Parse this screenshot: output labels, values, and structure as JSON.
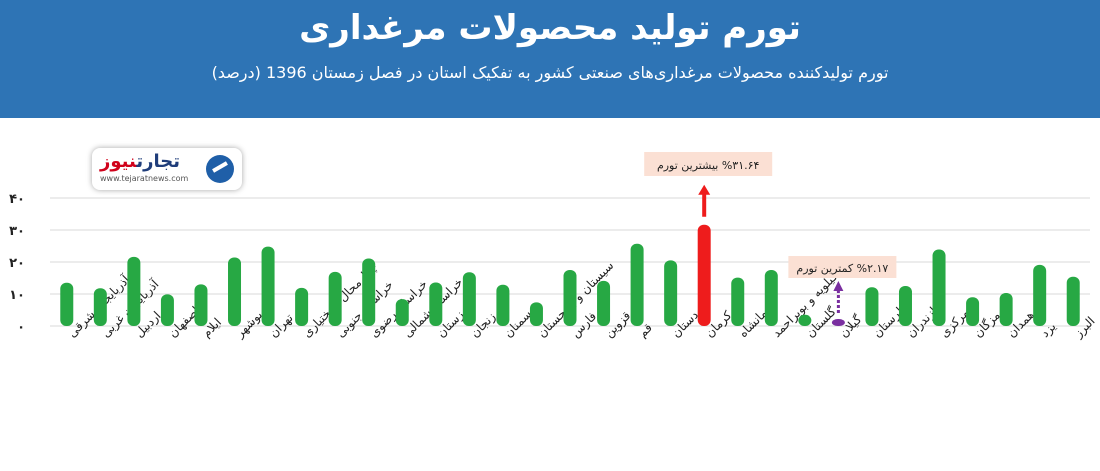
{
  "header": {
    "title": "تورم تولید محصولات مرغداری",
    "subtitle": "تورم تولیدکننده محصولات مرغداری‌های صنعتی کشور به تفکیک استان در فصل زمستان 1396 (درصد)"
  },
  "logo": {
    "name_part1": "نیوز",
    "name_part2": "تجارت",
    "url": "www.tejaratnews.com"
  },
  "colors": {
    "banner": "#2e74b5",
    "bar_default": "#27a844",
    "bar_max": "#ee1c1c",
    "bar_min": "#7a2fa0",
    "callout_bg": "#fbe0d4"
  },
  "chart_data": {
    "type": "bar",
    "ylim": [
      0,
      40
    ],
    "yticks": [
      "۰",
      "۱۰",
      "۲۰",
      "۳۰",
      "۴۰"
    ],
    "grid": true,
    "categories": [
      "آذربایجان شرقی",
      "آذربایجان غربی",
      "اردبیل",
      "اصفهان",
      "ایلام",
      "بوشهر",
      "تهران",
      "چهارمحال و بختیاری",
      "خراسان جنوبی",
      "خراسان رضوی",
      "خراسان شمالی",
      "خوزستان",
      "زنجان",
      "سمنان",
      "سیستان و بلوچستان",
      "فارس",
      "قزوین",
      "قم",
      "کردستان",
      "کرمان",
      "کرمانشاه",
      "کهگیلویه و بویراحمد",
      "گلستان",
      "گیلان",
      "لرستان",
      "مازندران",
      "مرکزی",
      "هرمزگان",
      "همدان",
      "یزد",
      "البرز"
    ],
    "values": [
      13.5,
      11.8,
      21.6,
      9.9,
      13.0,
      21.4,
      24.8,
      11.9,
      16.9,
      21.1,
      8.4,
      13.6,
      16.8,
      12.9,
      7.4,
      17.5,
      14.1,
      25.7,
      20.5,
      31.64,
      15.1,
      17.5,
      3.5,
      2.17,
      12.1,
      12.5,
      23.9,
      9.0,
      10.3,
      19.1,
      15.4
    ],
    "highlight_max": {
      "index": 19,
      "label": "%۳۱.۶۴ بیشترین تورم"
    },
    "highlight_min": {
      "index": 23,
      "label": "%۲.۱۷ کمترین تورم"
    }
  }
}
